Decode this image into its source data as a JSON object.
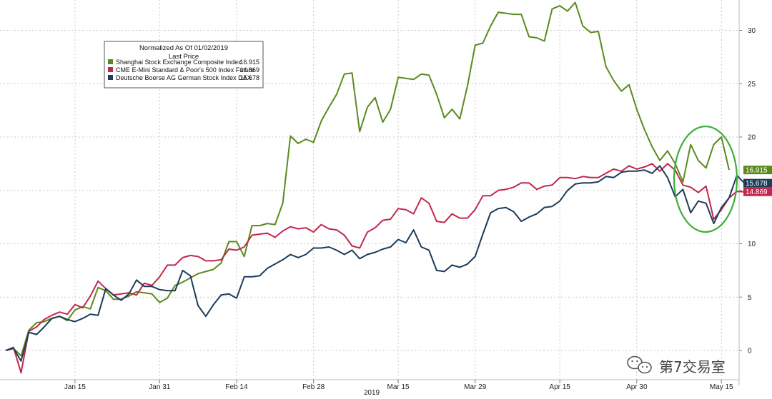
{
  "chart_data": {
    "type": "line",
    "title": "",
    "xlabel": "2019",
    "ylabel": "",
    "ylim": [
      -3,
      33
    ],
    "y_ticks": [
      0,
      5,
      10,
      15,
      20,
      25,
      30
    ],
    "grid": true,
    "legend_placement": "top-left",
    "legend_title": [
      "Normalized As Of 01/02/2019",
      "Last Price"
    ],
    "x_tick_labels": [
      {
        "label": "Jan 15",
        "index": 9
      },
      {
        "label": "Jan 31",
        "index": 20
      },
      {
        "label": "Feb 14",
        "index": 30
      },
      {
        "label": "Feb 28",
        "index": 40
      },
      {
        "label": "Mar 15",
        "index": 51
      },
      {
        "label": "Mar 29",
        "index": 61
      },
      {
        "label": "Apr 15",
        "index": 72
      },
      {
        "label": "Apr 30",
        "index": 82
      },
      {
        "label": "May 15",
        "index": 93
      }
    ],
    "series": [
      {
        "name": "Shanghai Stock Exchange Composite Index",
        "last_price": "16.915",
        "color": "#5a8a1e",
        "values": [
          0.0,
          0.2,
          -0.5,
          1.9,
          2.6,
          2.7,
          3.0,
          3.2,
          2.8,
          3.8,
          4.1,
          3.9,
          5.9,
          5.6,
          4.8,
          4.8,
          5.1,
          5.5,
          5.4,
          5.3,
          4.5,
          4.9,
          6.1,
          6.4,
          6.8,
          7.2,
          7.4,
          7.6,
          8.2,
          10.2,
          10.2,
          8.8,
          11.7,
          11.7,
          11.9,
          11.8,
          13.8,
          20.1,
          19.4,
          19.8,
          19.5,
          21.5,
          22.8,
          24.0,
          25.9,
          26.0,
          20.5,
          22.8,
          23.7,
          21.4,
          22.6,
          25.6,
          25.5,
          25.4,
          25.9,
          25.8,
          24.0,
          21.8,
          22.6,
          21.7,
          24.8,
          28.6,
          28.8,
          30.4,
          31.7,
          31.6,
          31.5,
          31.5,
          29.4,
          29.3,
          29.0,
          32.0,
          32.3,
          31.8,
          32.6,
          30.4,
          29.8,
          29.9,
          26.6,
          25.3,
          24.3,
          24.9,
          22.6,
          20.7,
          19.1,
          17.8,
          18.7,
          17.5,
          15.8,
          19.3,
          17.8,
          17.1,
          19.3,
          20.0,
          16.915
        ]
      },
      {
        "name": "CME E-Mini Standard & Poor's 500 Index Future",
        "last_price": "14.869",
        "color": "#c2284d",
        "values": [
          0.0,
          0.3,
          -2.1,
          1.8,
          2.2,
          2.9,
          3.3,
          3.6,
          3.4,
          4.3,
          4.0,
          5.1,
          6.5,
          5.8,
          5.2,
          5.3,
          5.4,
          5.2,
          6.3,
          6.1,
          6.9,
          8.0,
          8.0,
          8.7,
          8.9,
          8.8,
          8.4,
          8.4,
          8.5,
          9.5,
          9.4,
          9.7,
          10.8,
          10.9,
          11.0,
          10.6,
          11.2,
          11.6,
          11.4,
          11.5,
          11.1,
          11.8,
          11.4,
          11.3,
          10.8,
          9.8,
          9.6,
          11.1,
          11.5,
          12.2,
          12.3,
          13.3,
          13.2,
          12.8,
          14.3,
          13.8,
          12.1,
          12.0,
          12.8,
          12.4,
          12.4,
          13.2,
          14.5,
          14.5,
          15.0,
          15.1,
          15.3,
          15.7,
          15.7,
          15.1,
          15.4,
          15.5,
          16.2,
          16.2,
          16.1,
          16.3,
          16.2,
          16.2,
          16.6,
          17.0,
          16.8,
          17.3,
          17.0,
          17.2,
          17.5,
          16.8,
          17.5,
          16.9,
          15.5,
          15.3,
          14.8,
          15.4,
          12.3,
          13.2,
          14.3,
          14.9,
          14.869
        ]
      },
      {
        "name": "Deutsche Boerse AG German Stock Index DAX",
        "last_price": "15.678",
        "color": "#1d3b5a",
        "values": [
          0.0,
          0.2,
          -1.0,
          1.7,
          1.5,
          2.2,
          3.0,
          3.2,
          2.9,
          2.7,
          3.0,
          3.4,
          3.3,
          5.8,
          5.2,
          4.7,
          5.3,
          6.6,
          6.0,
          6.0,
          5.7,
          5.6,
          5.6,
          7.5,
          7.0,
          4.2,
          3.2,
          4.3,
          5.2,
          5.3,
          4.9,
          6.9,
          6.9,
          7.0,
          7.7,
          8.1,
          8.5,
          9.0,
          8.7,
          9.0,
          9.6,
          9.6,
          9.7,
          9.4,
          9.0,
          9.4,
          8.6,
          9.0,
          9.2,
          9.5,
          9.7,
          10.4,
          10.1,
          11.3,
          9.7,
          9.4,
          7.5,
          7.4,
          8.0,
          7.8,
          8.1,
          8.8,
          10.9,
          12.9,
          13.3,
          13.4,
          13.0,
          12.1,
          12.5,
          12.8,
          13.4,
          13.5,
          14.0,
          15.0,
          15.6,
          15.7,
          15.7,
          15.8,
          16.3,
          16.2,
          16.7,
          16.8,
          16.8,
          16.9,
          16.6,
          17.3,
          16.2,
          14.4,
          15.1,
          12.9,
          14.0,
          13.8,
          11.9,
          13.4,
          14.3,
          16.4,
          15.678
        ]
      }
    ],
    "annotation": "green ellipse highlighting the most recent sessions"
  },
  "watermark": {
    "text": "第7交易室",
    "icon": "wechat-icon"
  }
}
